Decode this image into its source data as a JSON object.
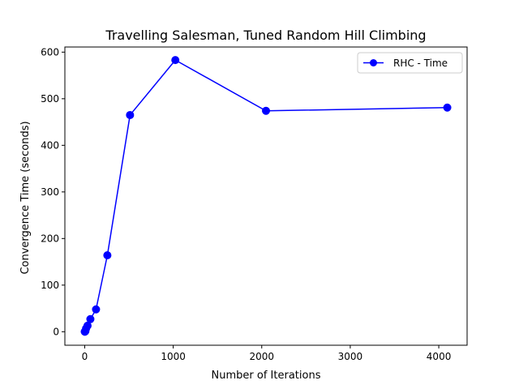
{
  "chart_data": {
    "type": "line",
    "title": "Travelling Salesman, Tuned Random Hill Climbing",
    "xlabel": "Number of Iterations",
    "ylabel": "Convergence Time (seconds)",
    "xlim": [
      -224,
      4320
    ],
    "ylim": [
      -29,
      611
    ],
    "xticks": [
      0,
      1000,
      2000,
      3000,
      4000
    ],
    "yticks": [
      0,
      100,
      200,
      300,
      400,
      500,
      600
    ],
    "xtick_labels": [
      "0",
      "1000",
      "2000",
      "3000",
      "4000"
    ],
    "ytick_labels": [
      "0",
      "100",
      "200",
      "300",
      "400",
      "500",
      "600"
    ],
    "grid": false,
    "legend_position": "top-right",
    "series": [
      {
        "name": "RHC - Time",
        "color": "#0000ff",
        "marker": "circle",
        "x": [
          1,
          2,
          4,
          8,
          16,
          32,
          64,
          128,
          256,
          512,
          1024,
          2048,
          4096
        ],
        "y": [
          0.1,
          0.2,
          0.5,
          1.5,
          7,
          13,
          27,
          48,
          164,
          465,
          583,
          474,
          481
        ]
      }
    ]
  }
}
